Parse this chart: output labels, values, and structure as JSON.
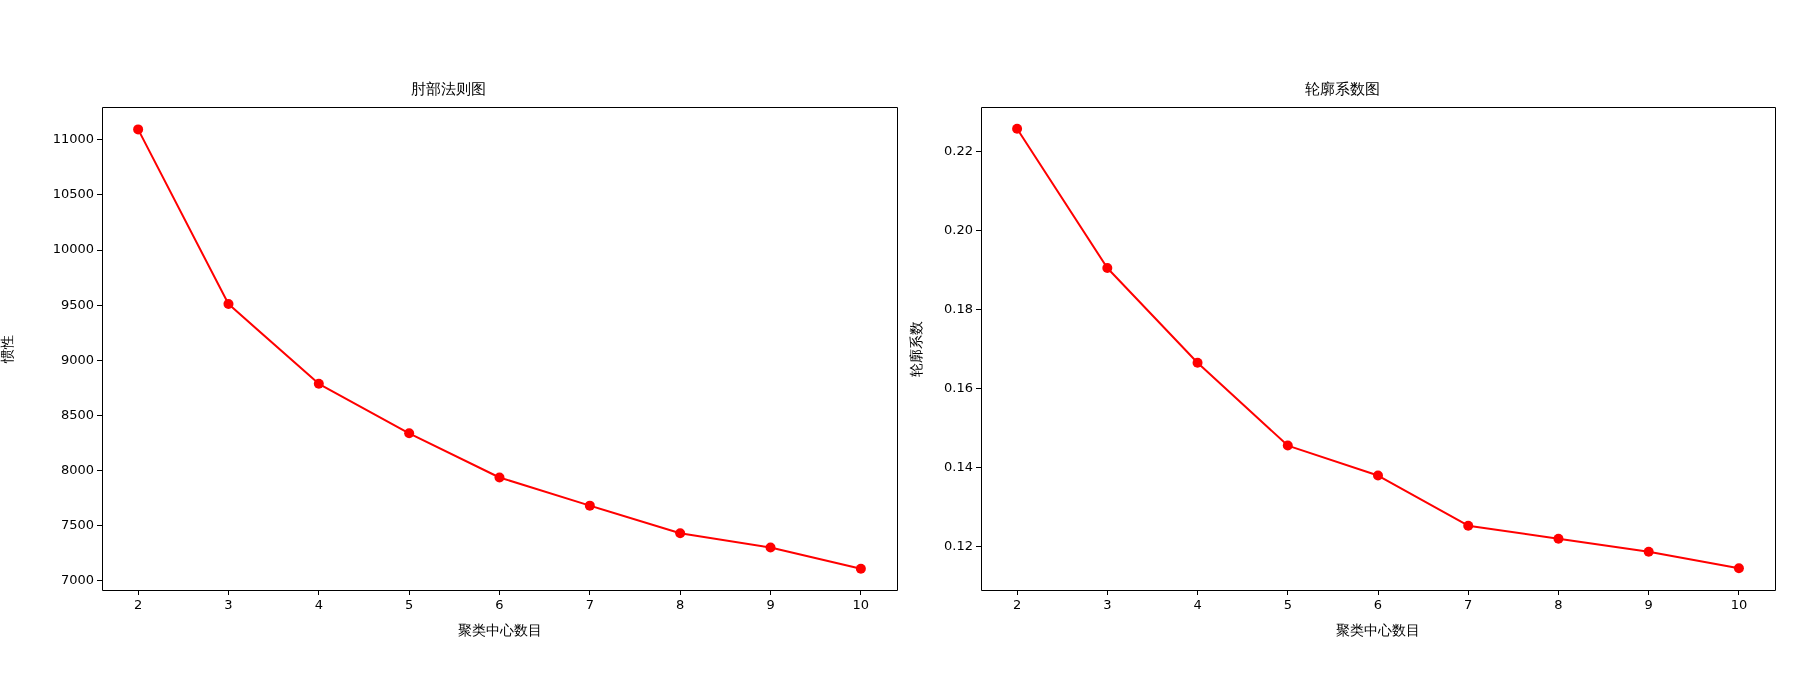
{
  "chart_data": [
    {
      "type": "line",
      "title": "肘部法则图",
      "xlabel": "聚类中心数目",
      "ylabel": "惯性",
      "x": [
        2,
        3,
        4,
        5,
        6,
        7,
        8,
        9,
        10
      ],
      "values": [
        11094,
        9510,
        8787,
        8338,
        7937,
        7682,
        7432,
        7302,
        7109
      ],
      "color": "#ff0000",
      "marker": "circle",
      "line_style": "solid",
      "grid": false,
      "legend": false,
      "xlim": [
        1.6,
        10.4
      ],
      "xticks": [
        2,
        3,
        4,
        5,
        6,
        7,
        8,
        9,
        10
      ],
      "ylim": [
        6917,
        11297
      ],
      "yticks": [
        7000,
        7500,
        8000,
        8500,
        9000,
        9500,
        10000,
        10500,
        11000
      ]
    },
    {
      "type": "line",
      "title": "轮廓系数图",
      "xlabel": "聚类中心数目",
      "ylabel": "轮廓系数",
      "x": [
        2,
        3,
        4,
        5,
        6,
        7,
        8,
        9,
        10
      ],
      "values": [
        0.2258,
        0.1905,
        0.1665,
        0.1455,
        0.1379,
        0.1252,
        0.1219,
        0.1186,
        0.1144
      ],
      "color": "#ff0000",
      "marker": "circle",
      "line_style": "solid",
      "grid": false,
      "legend": false,
      "xlim": [
        1.6,
        10.4
      ],
      "xticks": [
        2,
        3,
        4,
        5,
        6,
        7,
        8,
        9,
        10
      ],
      "ylim": [
        0.1089,
        0.2313
      ],
      "yticks": [
        0.12,
        0.14,
        0.16,
        0.18,
        {
          "value": 0.2,
          "label": "0.20"
        },
        0.22
      ]
    }
  ]
}
